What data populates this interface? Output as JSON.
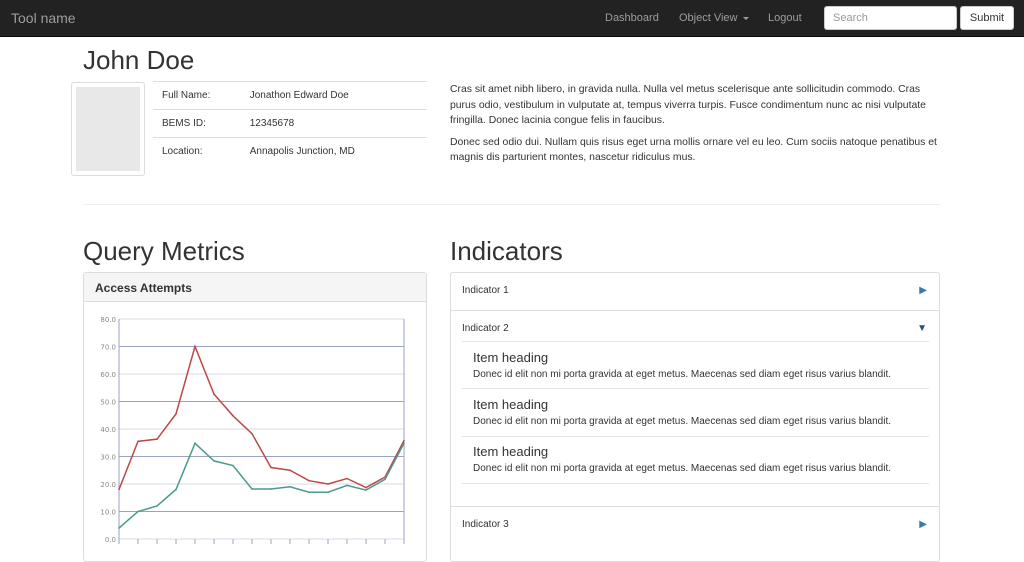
{
  "nav": {
    "brand": "Tool name",
    "links": [
      "Dashboard",
      "Object View",
      "Logout"
    ],
    "search_placeholder": "Search",
    "submit": "Submit"
  },
  "profile": {
    "name": "John Doe",
    "fields": [
      {
        "label": "Full Name:",
        "value": "Jonathon Edward Doe"
      },
      {
        "label": "BEMS ID:",
        "value": "12345678"
      },
      {
        "label": "Location:",
        "value": "Annapolis Junction, MD"
      }
    ],
    "paragraphs": [
      "Cras sit amet nibh libero, in gravida nulla. Nulla vel metus scelerisque ante sollicitudin commodo. Cras purus odio, vestibulum in vulputate at, tempus viverra turpis. Fusce condimentum nunc ac nisi vulputate fringilla. Donec lacinia congue felis in faucibus.",
      "Donec sed odio dui. Nullam quis risus eget urna mollis ornare vel eu leo. Cum sociis natoque penatibus et magnis dis parturient montes, nascetur ridiculus mus."
    ]
  },
  "metrics": {
    "title": "Query Metrics",
    "panel_title": "Access Attempts"
  },
  "indicators": {
    "title": "Indicators",
    "items": [
      {
        "label": "Indicator 1",
        "expanded": false
      },
      {
        "label": "Indicator 2",
        "expanded": true,
        "children": [
          {
            "heading": "Item heading",
            "text": "Donec id elit non mi porta gravida at eget metus. Maecenas sed diam eget risus varius blandit."
          },
          {
            "heading": "Item heading",
            "text": "Donec id elit non mi porta gravida at eget metus. Maecenas sed diam eget risus varius blandit."
          },
          {
            "heading": "Item heading",
            "text": "Donec id elit non mi porta gravida at eget metus. Maecenas sed diam eget risus varius blandit."
          }
        ]
      },
      {
        "label": "Indicator 3",
        "expanded": false
      }
    ]
  },
  "chart_data": {
    "type": "line",
    "ylim": [
      0,
      80
    ],
    "yticks": [
      "0.0",
      "10.0",
      "20.0",
      "30.0",
      "40.0",
      "50.0",
      "60.0",
      "70.0",
      "80.0"
    ],
    "grid": true,
    "series": [
      {
        "color": "#b94a48",
        "values": [
          18,
          35.5,
          36.3,
          45.5,
          70,
          52.7,
          44.8,
          38.3,
          26,
          25,
          21.2,
          20,
          22,
          18.7,
          22.5,
          35.8
        ]
      },
      {
        "color": "#4a9a8f",
        "values": [
          4,
          10,
          12,
          18,
          34.8,
          28.4,
          26.7,
          18.2,
          18.2,
          19,
          17,
          17,
          19.5,
          17.8,
          21.7,
          34.8
        ]
      }
    ]
  }
}
